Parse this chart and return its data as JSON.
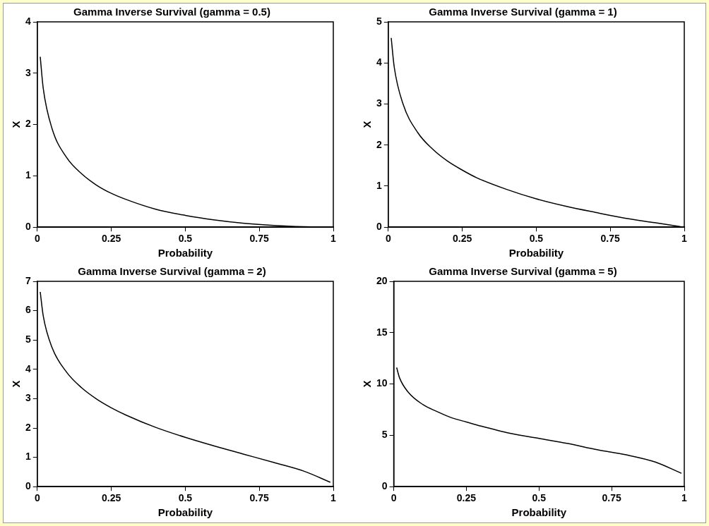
{
  "chart_data": [
    {
      "type": "line",
      "title": "Gamma Inverse Survival (gamma = 0.5)",
      "xlabel": "Probability",
      "ylabel": "X",
      "x": [
        0.01,
        0.02,
        0.05,
        0.1,
        0.15,
        0.2,
        0.25,
        0.3,
        0.4,
        0.5,
        0.6,
        0.7,
        0.8,
        0.9,
        0.99
      ],
      "series": [
        {
          "color": "#000000",
          "values": [
            3.32,
            2.71,
            1.92,
            1.35,
            1.04,
            0.82,
            0.66,
            0.54,
            0.35,
            0.23,
            0.14,
            0.074,
            0.032,
            0.008,
            0
          ]
        }
      ],
      "xlim": [
        0,
        1
      ],
      "xticks": [
        0,
        0.25,
        0.5,
        0.75,
        1
      ],
      "ylim": [
        0,
        4
      ],
      "yticks": [
        0,
        1,
        2,
        3,
        4
      ],
      "grid": false,
      "legend": false,
      "marker": "none",
      "line_style": "solid"
    },
    {
      "type": "line",
      "title": "Gamma Inverse Survival (gamma = 1)",
      "xlabel": "Probability",
      "ylabel": "X",
      "x": [
        0.01,
        0.02,
        0.05,
        0.1,
        0.15,
        0.2,
        0.25,
        0.3,
        0.4,
        0.5,
        0.6,
        0.7,
        0.8,
        0.9,
        0.99
      ],
      "series": [
        {
          "color": "#000000",
          "values": [
            4.61,
            3.91,
            3.0,
            2.3,
            1.9,
            1.61,
            1.39,
            1.2,
            0.92,
            0.69,
            0.51,
            0.36,
            0.22,
            0.11,
            0.01
          ]
        }
      ],
      "xlim": [
        0,
        1
      ],
      "xticks": [
        0,
        0.25,
        0.5,
        0.75,
        1
      ],
      "ylim": [
        0,
        5
      ],
      "yticks": [
        0,
        1,
        2,
        3,
        4,
        5
      ],
      "grid": false,
      "legend": false,
      "marker": "none",
      "line_style": "solid"
    },
    {
      "type": "line",
      "title": "Gamma Inverse Survival (gamma = 2)",
      "xlabel": "Probability",
      "ylabel": "X",
      "x": [
        0.01,
        0.02,
        0.05,
        0.1,
        0.15,
        0.2,
        0.25,
        0.3,
        0.4,
        0.5,
        0.6,
        0.7,
        0.8,
        0.9,
        0.99
      ],
      "series": [
        {
          "color": "#000000",
          "values": [
            6.64,
            5.83,
            4.74,
            3.89,
            3.37,
            2.99,
            2.69,
            2.44,
            2.02,
            1.68,
            1.38,
            1.1,
            0.82,
            0.53,
            0.15
          ]
        }
      ],
      "xlim": [
        0,
        1
      ],
      "xticks": [
        0,
        0.25,
        0.5,
        0.75,
        1
      ],
      "ylim": [
        0,
        7
      ],
      "yticks": [
        0,
        1,
        2,
        3,
        4,
        5,
        6,
        7
      ],
      "grid": false,
      "legend": false,
      "marker": "none",
      "line_style": "solid"
    },
    {
      "type": "line",
      "title": "Gamma Inverse Survival (gamma = 5)",
      "xlabel": "Probability",
      "ylabel": "X",
      "x": [
        0.01,
        0.02,
        0.05,
        0.1,
        0.15,
        0.2,
        0.25,
        0.3,
        0.4,
        0.5,
        0.6,
        0.7,
        0.8,
        0.9,
        0.99
      ],
      "series": [
        {
          "color": "#000000",
          "values": [
            11.6,
            10.6,
            9.2,
            8.0,
            7.3,
            6.7,
            6.3,
            5.9,
            5.2,
            4.7,
            4.2,
            3.6,
            3.1,
            2.4,
            1.3
          ]
        }
      ],
      "xlim": [
        0,
        1
      ],
      "xticks": [
        0,
        0.25,
        0.5,
        0.75,
        1
      ],
      "ylim": [
        0,
        20
      ],
      "yticks": [
        0,
        5,
        10,
        15,
        20
      ],
      "grid": false,
      "legend": false,
      "marker": "none",
      "line_style": "solid"
    }
  ]
}
